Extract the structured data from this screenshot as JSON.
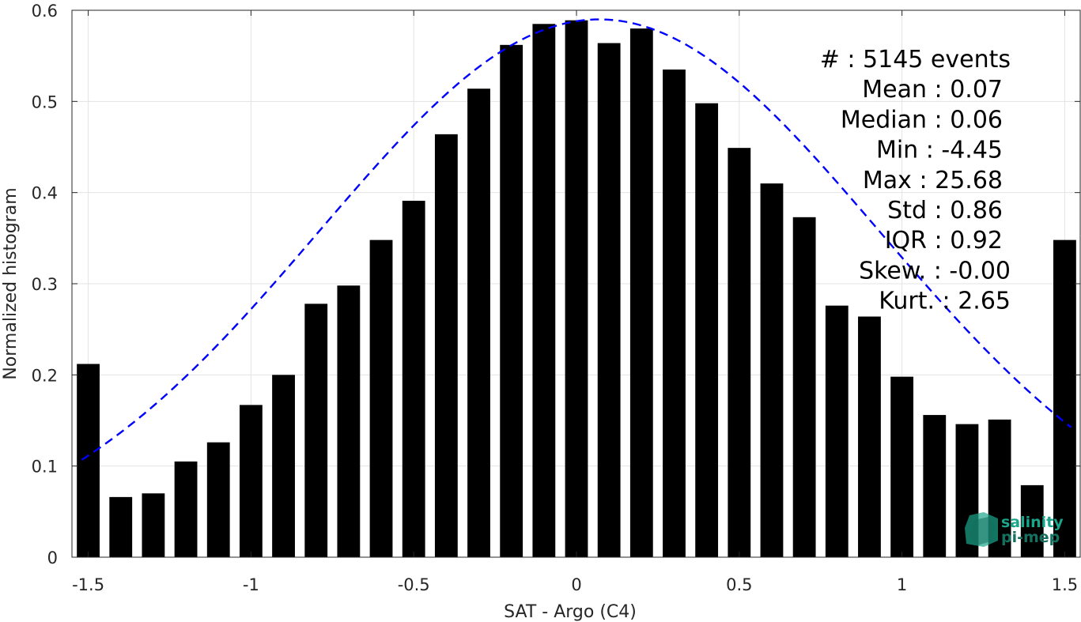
{
  "chart_data": {
    "type": "bar",
    "xlabel": "SAT - Argo (C4)",
    "ylabel": "Normalized histogram",
    "xlim": [
      -1.55,
      1.55
    ],
    "ylim": [
      0,
      0.6
    ],
    "grid": true,
    "x_ticks": [
      -1.5,
      -1,
      -0.5,
      0,
      0.5,
      1,
      1.5
    ],
    "x_tick_labels": [
      "-1.5",
      "-1",
      "-0.5",
      "0",
      "0.5",
      "1",
      "1.5"
    ],
    "y_ticks": [
      0,
      0.1,
      0.2,
      0.3,
      0.4,
      0.5,
      0.6
    ],
    "y_tick_labels": [
      "0",
      "0.1",
      "0.2",
      "0.3",
      "0.4",
      "0.5",
      "0.6"
    ],
    "bar_width": 0.07,
    "bar_color": "#000000",
    "x": [
      -1.5,
      -1.4,
      -1.3,
      -1.2,
      -1.1,
      -1.0,
      -0.9,
      -0.8,
      -0.7,
      -0.6,
      -0.5,
      -0.4,
      -0.3,
      -0.2,
      -0.1,
      0.0,
      0.1,
      0.2,
      0.3,
      0.4,
      0.5,
      0.6,
      0.7,
      0.8,
      0.9,
      1.0,
      1.1,
      1.2,
      1.3,
      1.4,
      1.5
    ],
    "values": [
      0.212,
      0.066,
      0.07,
      0.105,
      0.126,
      0.167,
      0.2,
      0.278,
      0.298,
      0.348,
      0.391,
      0.464,
      0.514,
      0.562,
      0.585,
      0.589,
      0.564,
      0.58,
      0.535,
      0.498,
      0.449,
      0.41,
      0.373,
      0.276,
      0.264,
      0.198,
      0.156,
      0.146,
      0.151,
      0.079,
      0.348
    ],
    "fit_curve": {
      "style": "dashed",
      "color": "#0000ff",
      "mean": 0.07,
      "std": 0.86,
      "peak": 0.59,
      "x_range": [
        -1.52,
        1.52
      ]
    },
    "stats": [
      "#  : 5145 events",
      "Mean : 0.07",
      "Median : 0.06",
      "Min : -4.45",
      "Max : 25.68",
      "Std : 0.86",
      "IQR : 0.92",
      "Skew. : -0.00",
      "Kurt. : 2.65"
    ],
    "logo": {
      "line1": "salinity",
      "line2": "pi-mep",
      "color1": "#1aa58a",
      "color2": "#14705f"
    }
  }
}
